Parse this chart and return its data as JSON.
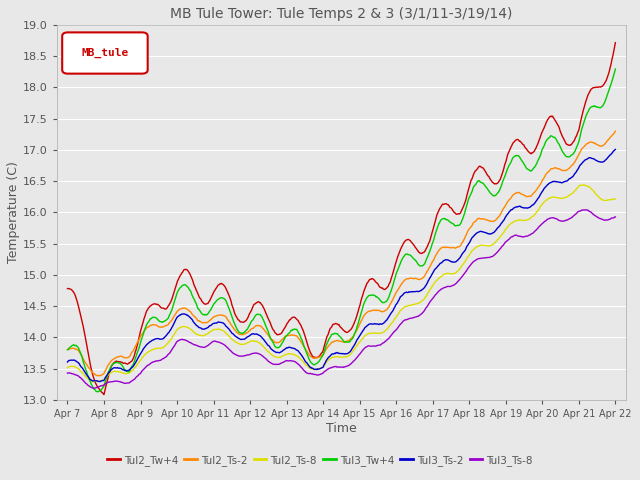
{
  "title": "MB Tule Tower: Tule Temps 2 & 3 (3/1/11-3/19/14)",
  "xlabel": "Time",
  "ylabel": "Temperature (C)",
  "ylim": [
    13.0,
    19.0
  ],
  "yticks": [
    13.0,
    13.5,
    14.0,
    14.5,
    15.0,
    15.5,
    16.0,
    16.5,
    17.0,
    17.5,
    18.0,
    18.5,
    19.0
  ],
  "xtick_labels": [
    "Apr 7",
    "Apr 8",
    "Apr 9",
    "Apr 10",
    "Apr 11",
    "Apr 12",
    "Apr 13",
    "Apr 14",
    "Apr 15",
    "Apr 16",
    "Apr 17",
    "Apr 18",
    "Apr 19",
    "Apr 20",
    "Apr 21",
    "Apr 22"
  ],
  "legend_text": "MB_tule",
  "legend_box_color": "#cc0000",
  "series_colors": {
    "Tul2_Tw+4": "#cc0000",
    "Tul2_Ts-2": "#ff8800",
    "Tul2_Ts-8": "#dddd00",
    "Tul3_Tw+4": "#00cc00",
    "Tul3_Ts-2": "#0000cc",
    "Tul3_Ts-8": "#9900cc"
  },
  "background_color": "#e8e8e8",
  "grid_color": "#ffffff",
  "title_color": "#555555",
  "axis_color": "#555555",
  "figsize": [
    6.4,
    4.8
  ],
  "dpi": 100
}
